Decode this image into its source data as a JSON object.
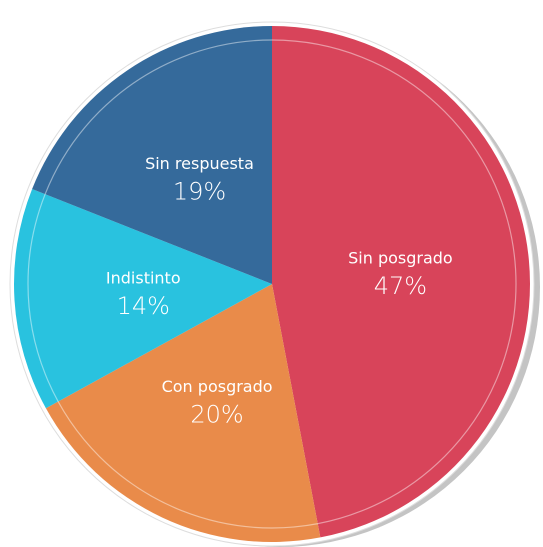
{
  "chart_data": {
    "type": "pie",
    "categories": [
      "Sin posgrado",
      "Con posgrado",
      "Indistinto",
      "Sin respuesta"
    ],
    "values": [
      47,
      20,
      14,
      19
    ],
    "value_labels": [
      "47%",
      "20%",
      "14%",
      "19%"
    ],
    "colors": [
      "#d8445a",
      "#e98b4a",
      "#29c2df",
      "#356a9b"
    ]
  }
}
